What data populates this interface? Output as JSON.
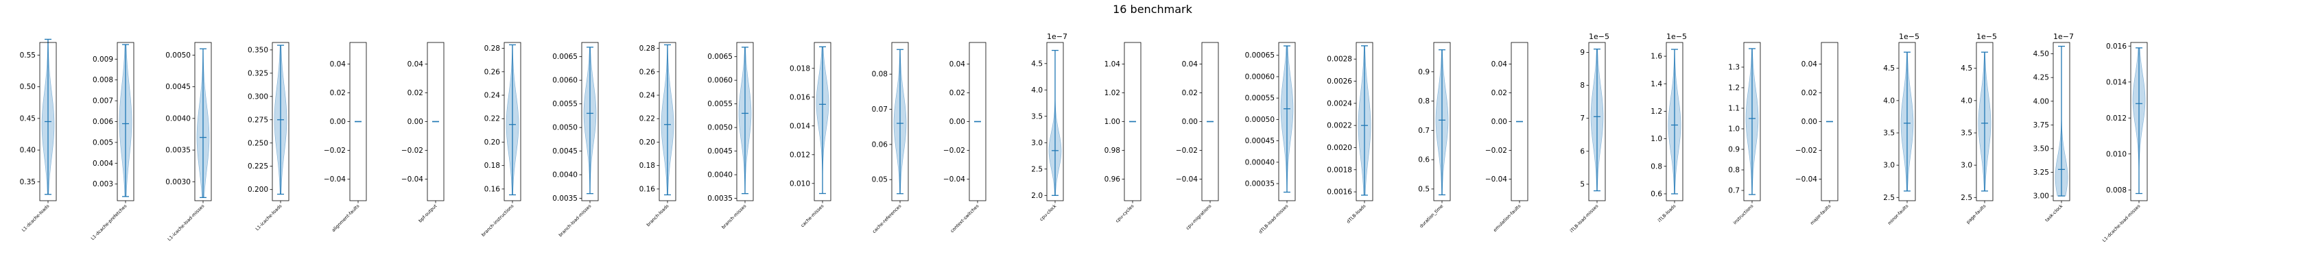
{
  "figure": {
    "title": "16 benchmark",
    "colors": {
      "violin_fill": "#aecde6",
      "violin_edge": "#7fb0d6",
      "stat_line": "#1f77b4",
      "axis": "#000000"
    }
  },
  "chart_data": [
    {
      "type": "violin",
      "xlabel": "L1-dcache-loads",
      "ylim": [
        0.32,
        0.57
      ],
      "yticks": [
        "0.35",
        "0.40",
        "0.45",
        "0.50",
        "0.55"
      ],
      "ytick_values": [
        0.35,
        0.4,
        0.45,
        0.5,
        0.55
      ],
      "min": 0.33,
      "max": 0.575,
      "median": 0.445,
      "peak": 0.44,
      "sigma": 0.05,
      "exponent": ""
    },
    {
      "type": "violin",
      "xlabel": "L1-dcache-prefetches",
      "ylim": [
        0.0022,
        0.0098
      ],
      "yticks": [
        "0.003",
        "0.004",
        "0.005",
        "0.006",
        "0.007",
        "0.008",
        "0.009"
      ],
      "ytick_values": [
        0.003,
        0.004,
        0.005,
        0.006,
        0.007,
        0.008,
        0.009
      ],
      "min": 0.0024,
      "max": 0.0097,
      "median": 0.0059,
      "peak": 0.006,
      "sigma": 0.0017,
      "exponent": ""
    },
    {
      "type": "violin",
      "xlabel": "L1-icache-load-misses",
      "ylim": [
        0.0027,
        0.0052
      ],
      "yticks": [
        "0.0030",
        "0.0035",
        "0.0040",
        "0.0045",
        "0.0050"
      ],
      "ytick_values": [
        0.003,
        0.0035,
        0.004,
        0.0045,
        0.005
      ],
      "min": 0.00275,
      "max": 0.0051,
      "median": 0.0037,
      "peak": 0.0037,
      "sigma": 0.0005,
      "exponent": ""
    },
    {
      "type": "violin",
      "xlabel": "L1-icache-loads",
      "ylim": [
        0.188,
        0.358
      ],
      "yticks": [
        "0.200",
        "0.225",
        "0.250",
        "0.275",
        "0.300",
        "0.325",
        "0.350"
      ],
      "ytick_values": [
        0.2,
        0.225,
        0.25,
        0.275,
        0.3,
        0.325,
        0.35
      ],
      "min": 0.195,
      "max": 0.355,
      "median": 0.275,
      "peak": 0.275,
      "sigma": 0.035,
      "exponent": ""
    },
    {
      "type": "violin",
      "xlabel": "alignment-faults",
      "ylim": [
        -0.055,
        0.055
      ],
      "yticks": [
        "−0.04",
        "−0.02",
        "0.00",
        "0.02",
        "0.04"
      ],
      "ytick_values": [
        -0.04,
        -0.02,
        0,
        0.02,
        0.04
      ],
      "min": 0,
      "max": 0,
      "median": 0,
      "peak": 0,
      "sigma": 0,
      "exponent": ""
    },
    {
      "type": "violin",
      "xlabel": "bpf-output",
      "ylim": [
        -0.055,
        0.055
      ],
      "yticks": [
        "−0.04",
        "−0.02",
        "0.00",
        "0.02",
        "0.04"
      ],
      "ytick_values": [
        -0.04,
        -0.02,
        0,
        0.02,
        0.04
      ],
      "min": 0,
      "max": 0,
      "median": 0,
      "peak": 0,
      "sigma": 0,
      "exponent": ""
    },
    {
      "type": "violin",
      "xlabel": "branch-instructions",
      "ylim": [
        0.15,
        0.285
      ],
      "yticks": [
        "0.16",
        "0.18",
        "0.20",
        "0.22",
        "0.24",
        "0.26",
        "0.28"
      ],
      "ytick_values": [
        0.16,
        0.18,
        0.2,
        0.22,
        0.24,
        0.26,
        0.28
      ],
      "min": 0.155,
      "max": 0.283,
      "median": 0.215,
      "peak": 0.215,
      "sigma": 0.025,
      "exponent": ""
    },
    {
      "type": "violin",
      "xlabel": "branch-load-misses",
      "ylim": [
        0.00345,
        0.0068
      ],
      "yticks": [
        "0.0035",
        "0.0040",
        "0.0045",
        "0.0050",
        "0.0055",
        "0.0060",
        "0.0065"
      ],
      "ytick_values": [
        0.0035,
        0.004,
        0.0045,
        0.005,
        0.0055,
        0.006,
        0.0065
      ],
      "min": 0.0036,
      "max": 0.0067,
      "median": 0.0053,
      "peak": 0.0053,
      "sigma": 0.0006,
      "exponent": ""
    },
    {
      "type": "violin",
      "xlabel": "branch-loads",
      "ylim": [
        0.15,
        0.285
      ],
      "yticks": [
        "0.16",
        "0.18",
        "0.20",
        "0.22",
        "0.24",
        "0.26",
        "0.28"
      ],
      "ytick_values": [
        0.16,
        0.18,
        0.2,
        0.22,
        0.24,
        0.26,
        0.28
      ],
      "min": 0.155,
      "max": 0.283,
      "median": 0.215,
      "peak": 0.215,
      "sigma": 0.025,
      "exponent": ""
    },
    {
      "type": "violin",
      "xlabel": "branch-misses",
      "ylim": [
        0.00345,
        0.0068
      ],
      "yticks": [
        "0.0035",
        "0.0040",
        "0.0045",
        "0.0050",
        "0.0055",
        "0.0060",
        "0.0065"
      ],
      "ytick_values": [
        0.0035,
        0.004,
        0.0045,
        0.005,
        0.0055,
        0.006,
        0.0065
      ],
      "min": 0.0036,
      "max": 0.0067,
      "median": 0.0053,
      "peak": 0.0053,
      "sigma": 0.0006,
      "exponent": ""
    },
    {
      "type": "violin",
      "xlabel": "cache-misses",
      "ylim": [
        0.0088,
        0.0198
      ],
      "yticks": [
        "0.010",
        "0.012",
        "0.014",
        "0.016",
        "0.018"
      ],
      "ytick_values": [
        0.01,
        0.012,
        0.014,
        0.016,
        0.018
      ],
      "min": 0.0093,
      "max": 0.0195,
      "median": 0.0155,
      "peak": 0.0156,
      "sigma": 0.0018,
      "exponent": ""
    },
    {
      "type": "violin",
      "xlabel": "cache-references",
      "ylim": [
        0.044,
        0.089
      ],
      "yticks": [
        "0.05",
        "0.06",
        "0.07",
        "0.08"
      ],
      "ytick_values": [
        0.05,
        0.06,
        0.07,
        0.08
      ],
      "min": 0.046,
      "max": 0.087,
      "median": 0.066,
      "peak": 0.066,
      "sigma": 0.008,
      "exponent": ""
    },
    {
      "type": "violin",
      "xlabel": "context-switches",
      "ylim": [
        -0.055,
        0.055
      ],
      "yticks": [
        "−0.04",
        "−0.02",
        "0.00",
        "0.02",
        "0.04"
      ],
      "ytick_values": [
        -0.04,
        -0.02,
        0,
        0.02,
        0.04
      ],
      "min": 0,
      "max": 0,
      "median": 0,
      "peak": 0,
      "sigma": 0,
      "exponent": ""
    },
    {
      "type": "violin",
      "xlabel": "cpu-clock",
      "ylim": [
        1.9,
        4.9
      ],
      "yticks": [
        "2.0",
        "2.5",
        "3.0",
        "3.5",
        "4.0",
        "4.5"
      ],
      "ytick_values": [
        2,
        2.5,
        3,
        3.5,
        4,
        4.5
      ],
      "min": 2.0,
      "max": 4.75,
      "median": 2.85,
      "peak": 2.85,
      "sigma": 0.35,
      "exponent": "1e−7"
    },
    {
      "type": "violin",
      "xlabel": "cpu-cycles",
      "ylim": [
        0.945,
        1.055
      ],
      "yticks": [
        "0.96",
        "0.98",
        "1.00",
        "1.02",
        "1.04"
      ],
      "ytick_values": [
        0.96,
        0.98,
        1.0,
        1.02,
        1.04
      ],
      "min": 1,
      "max": 1,
      "median": 1,
      "peak": 1,
      "sigma": 0,
      "exponent": ""
    },
    {
      "type": "violin",
      "xlabel": "cpu-migrations",
      "ylim": [
        -0.055,
        0.055
      ],
      "yticks": [
        "−0.04",
        "−0.02",
        "0.00",
        "0.02",
        "0.04"
      ],
      "ytick_values": [
        -0.04,
        -0.02,
        0,
        0.02,
        0.04
      ],
      "min": 0,
      "max": 0,
      "median": 0,
      "peak": 0,
      "sigma": 0,
      "exponent": ""
    },
    {
      "type": "violin",
      "xlabel": "dTLB-load-misses",
      "ylim": [
        0.00031,
        0.00068
      ],
      "yticks": [
        "0.00035",
        "0.00040",
        "0.00045",
        "0.00050",
        "0.00055",
        "0.00060",
        "0.00065"
      ],
      "ytick_values": [
        0.00035,
        0.0004,
        0.00045,
        0.0005,
        0.00055,
        0.0006,
        0.00065
      ],
      "min": 0.00033,
      "max": 0.000672,
      "median": 0.000525,
      "peak": 0.000525,
      "sigma": 7e-05,
      "exponent": ""
    },
    {
      "type": "violin",
      "xlabel": "dTLB-loads",
      "ylim": [
        0.00152,
        0.00295
      ],
      "yticks": [
        "0.0016",
        "0.0018",
        "0.0020",
        "0.0022",
        "0.0024",
        "0.0026",
        "0.0028"
      ],
      "ytick_values": [
        0.0016,
        0.0018,
        0.002,
        0.0022,
        0.0024,
        0.0026,
        0.0028
      ],
      "min": 0.00157,
      "max": 0.00292,
      "median": 0.0022,
      "peak": 0.0022,
      "sigma": 0.0003,
      "exponent": ""
    },
    {
      "type": "violin",
      "xlabel": "duration_time",
      "ylim": [
        0.46,
        1.0
      ],
      "yticks": [
        "0.5",
        "0.6",
        "0.7",
        "0.8",
        "0.9"
      ],
      "ytick_values": [
        0.5,
        0.6,
        0.7,
        0.8,
        0.9
      ],
      "min": 0.48,
      "max": 0.975,
      "median": 0.735,
      "peak": 0.735,
      "sigma": 0.1,
      "exponent": ""
    },
    {
      "type": "violin",
      "xlabel": "emulation-faults",
      "ylim": [
        -0.055,
        0.055
      ],
      "yticks": [
        "−0.04",
        "−0.02",
        "0.00",
        "0.02",
        "0.04"
      ],
      "ytick_values": [
        -0.04,
        -0.02,
        0,
        0.02,
        0.04
      ],
      "min": 0,
      "max": 0,
      "median": 0,
      "peak": 0,
      "sigma": 0,
      "exponent": ""
    },
    {
      "type": "violin",
      "xlabel": "iTLB-load-misses",
      "ylim": [
        4.5,
        9.3
      ],
      "yticks": [
        "5",
        "6",
        "7",
        "8",
        "9"
      ],
      "ytick_values": [
        5,
        6,
        7,
        8,
        9
      ],
      "min": 4.8,
      "max": 9.1,
      "median": 7.05,
      "peak": 7.05,
      "sigma": 0.9,
      "exponent": "1e−5"
    },
    {
      "type": "violin",
      "xlabel": "iTLB-loads",
      "ylim": [
        0.55,
        1.7
      ],
      "yticks": [
        "0.6",
        "0.8",
        "1.0",
        "1.2",
        "1.4",
        "1.6"
      ],
      "ytick_values": [
        0.6,
        0.8,
        1.0,
        1.2,
        1.4,
        1.6
      ],
      "min": 0.6,
      "max": 1.65,
      "median": 1.1,
      "peak": 1.1,
      "sigma": 0.2,
      "exponent": "1e−5"
    },
    {
      "type": "violin",
      "xlabel": "instructions",
      "ylim": [
        0.65,
        1.42
      ],
      "yticks": [
        "0.7",
        "0.8",
        "0.9",
        "1.0",
        "1.1",
        "1.2",
        "1.3"
      ],
      "ytick_values": [
        0.7,
        0.8,
        0.9,
        1.0,
        1.1,
        1.2,
        1.3
      ],
      "min": 0.68,
      "max": 1.39,
      "median": 1.05,
      "peak": 1.05,
      "sigma": 0.14,
      "exponent": ""
    },
    {
      "type": "violin",
      "xlabel": "major-faults",
      "ylim": [
        -0.055,
        0.055
      ],
      "yticks": [
        "−0.04",
        "−0.02",
        "0.00",
        "0.02",
        "0.04"
      ],
      "ytick_values": [
        -0.04,
        -0.02,
        0,
        0.02,
        0.04
      ],
      "min": 0,
      "max": 0,
      "median": 0,
      "peak": 0,
      "sigma": 0,
      "exponent": ""
    },
    {
      "type": "violin",
      "xlabel": "minor-faults",
      "ylim": [
        2.45,
        4.9
      ],
      "yticks": [
        "2.5",
        "3.0",
        "3.5",
        "4.0",
        "4.5"
      ],
      "ytick_values": [
        2.5,
        3.0,
        3.5,
        4.0,
        4.5
      ],
      "min": 2.6,
      "max": 4.75,
      "median": 3.65,
      "peak": 3.65,
      "sigma": 0.45,
      "exponent": "1e−5"
    },
    {
      "type": "violin",
      "xlabel": "page-faults",
      "ylim": [
        2.45,
        4.9
      ],
      "yticks": [
        "2.5",
        "3.0",
        "3.5",
        "4.0",
        "4.5"
      ],
      "ytick_values": [
        2.5,
        3.0,
        3.5,
        4.0,
        4.5
      ],
      "min": 2.6,
      "max": 4.75,
      "median": 3.65,
      "peak": 3.65,
      "sigma": 0.45,
      "exponent": "1e−5"
    },
    {
      "type": "violin",
      "xlabel": "task-clock",
      "ylim": [
        2.95,
        4.62
      ],
      "yticks": [
        "3.00",
        "3.25",
        "3.50",
        "3.75",
        "4.00",
        "4.25",
        "4.50"
      ],
      "ytick_values": [
        3.0,
        3.25,
        3.5,
        3.75,
        4.0,
        4.25,
        4.5
      ],
      "min": 3.0,
      "max": 4.58,
      "median": 3.28,
      "peak": 3.2,
      "sigma": 0.22,
      "exponent": "1e−7"
    },
    {
      "type": "violin",
      "xlabel": "L1-dcache-load-misses",
      "ylim": [
        0.0074,
        0.0162
      ],
      "yticks": [
        "0.008",
        "0.010",
        "0.012",
        "0.014",
        "0.016"
      ],
      "ytick_values": [
        0.008,
        0.01,
        0.012,
        0.014,
        0.016
      ],
      "min": 0.0078,
      "max": 0.0159,
      "median": 0.0128,
      "peak": 0.013,
      "sigma": 0.0014,
      "exponent": ""
    }
  ]
}
